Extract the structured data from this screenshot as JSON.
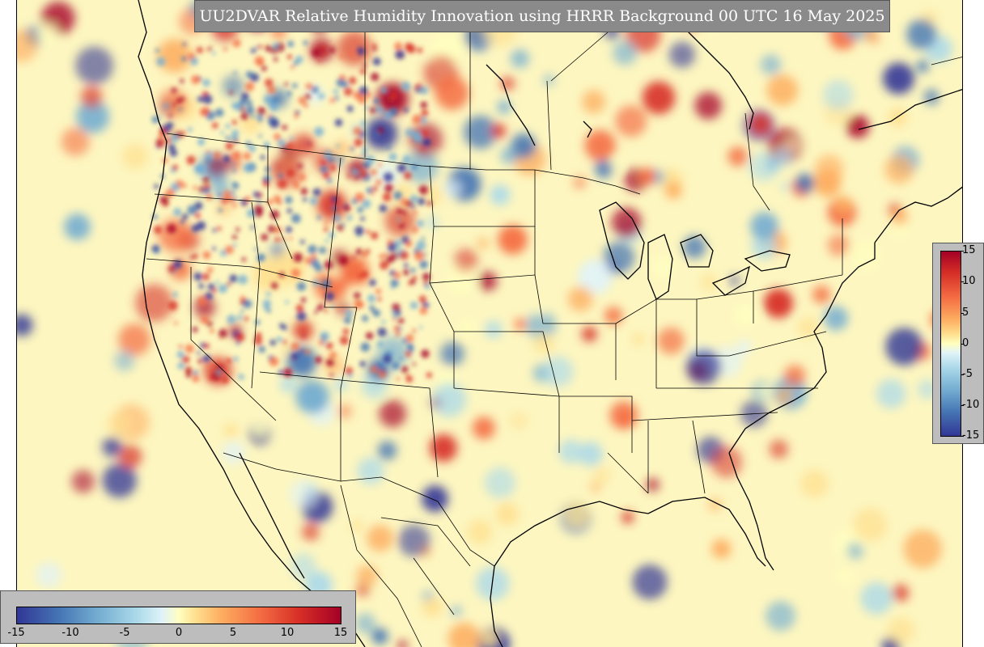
{
  "title": "UU2DVAR Relative Humidity Innovation using HRRR Background 00 UTC 16 May 2025",
  "colorbar": {
    "min": -15,
    "max": 15,
    "right_ticks": [
      "15",
      "10",
      "5",
      "0",
      "-5",
      "-10",
      "-15"
    ],
    "bottom_ticks": [
      "-15",
      "-10",
      "-5",
      "0",
      "5",
      "10",
      "15"
    ],
    "colormap": [
      "#313695",
      "#4575b4",
      "#74add1",
      "#abd9e9",
      "#e0f3f8",
      "#ffffbf",
      "#fee090",
      "#fdae61",
      "#f46d43",
      "#d73027",
      "#a50026"
    ]
  },
  "map": {
    "background_color": "#fdf6c0",
    "border_color": "#000000"
  }
}
